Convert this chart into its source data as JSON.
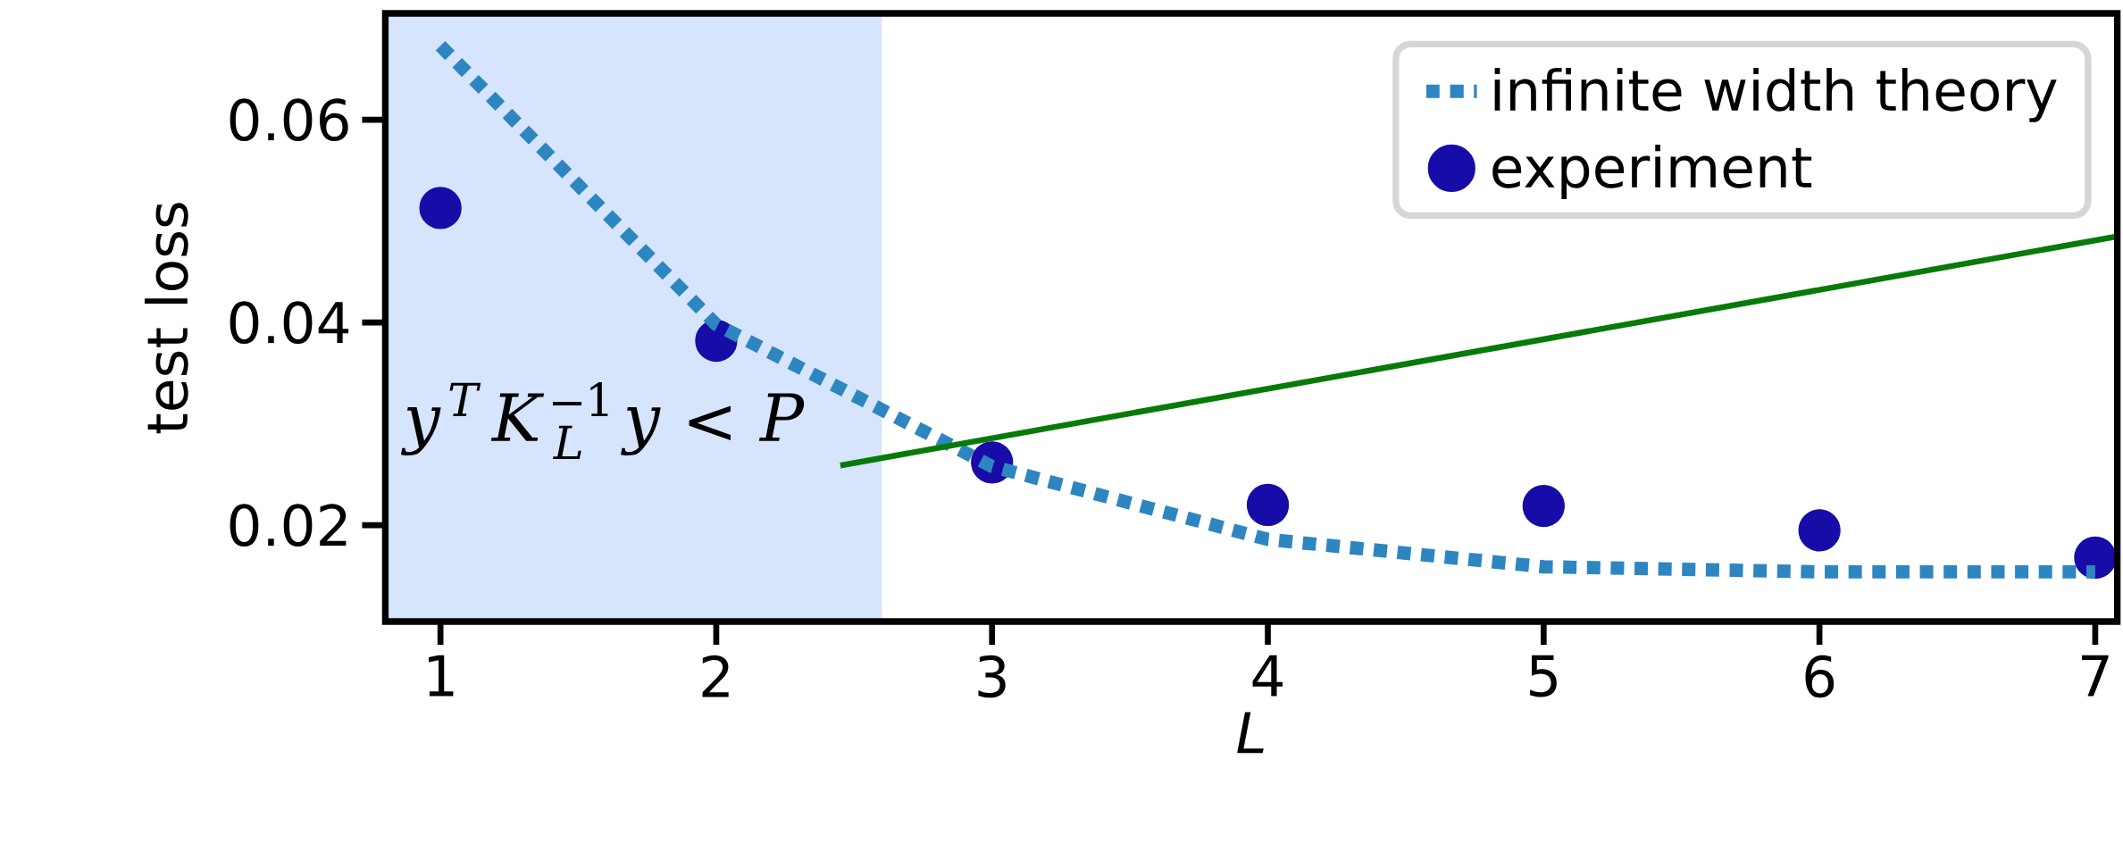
{
  "chart_data": {
    "type": "line",
    "xlabel": "L",
    "ylabel": "test loss",
    "x": [
      1,
      2,
      3,
      4,
      5,
      6,
      7
    ],
    "series": [
      {
        "name": "infinite width theory",
        "color": "#2e86c1",
        "line_style": "dotted",
        "marker": "none",
        "values": [
          0.0673,
          0.0398,
          0.0258,
          0.0186,
          0.0159,
          0.0154,
          0.0154
        ]
      },
      {
        "name": "experiment",
        "type": "scatter",
        "color": "#170ca8",
        "marker": "circle",
        "values": [
          0.0513,
          0.0382,
          0.0262,
          0.022,
          0.0219,
          0.0195,
          0.0168
        ]
      },
      {
        "color": "#087a08",
        "line_style": "solid",
        "marker": "none",
        "x": [
          2.45,
          7.08
        ],
        "values": [
          0.0259,
          0.0485
        ]
      }
    ],
    "bands": [
      {
        "axis": "x",
        "from": 0.8,
        "to": 2.6,
        "label": "y^{T}K_{L}^{-1}y<P",
        "color": "#d6e4fc"
      }
    ],
    "xlim": [
      0.8,
      7.08
    ],
    "ylim": [
      0.0105,
      0.0705
    ],
    "xticks": [
      1,
      2,
      3,
      4,
      5,
      6,
      7
    ],
    "yticks": [
      0.02,
      0.04,
      0.06
    ],
    "grid": false,
    "legend": "top right"
  }
}
